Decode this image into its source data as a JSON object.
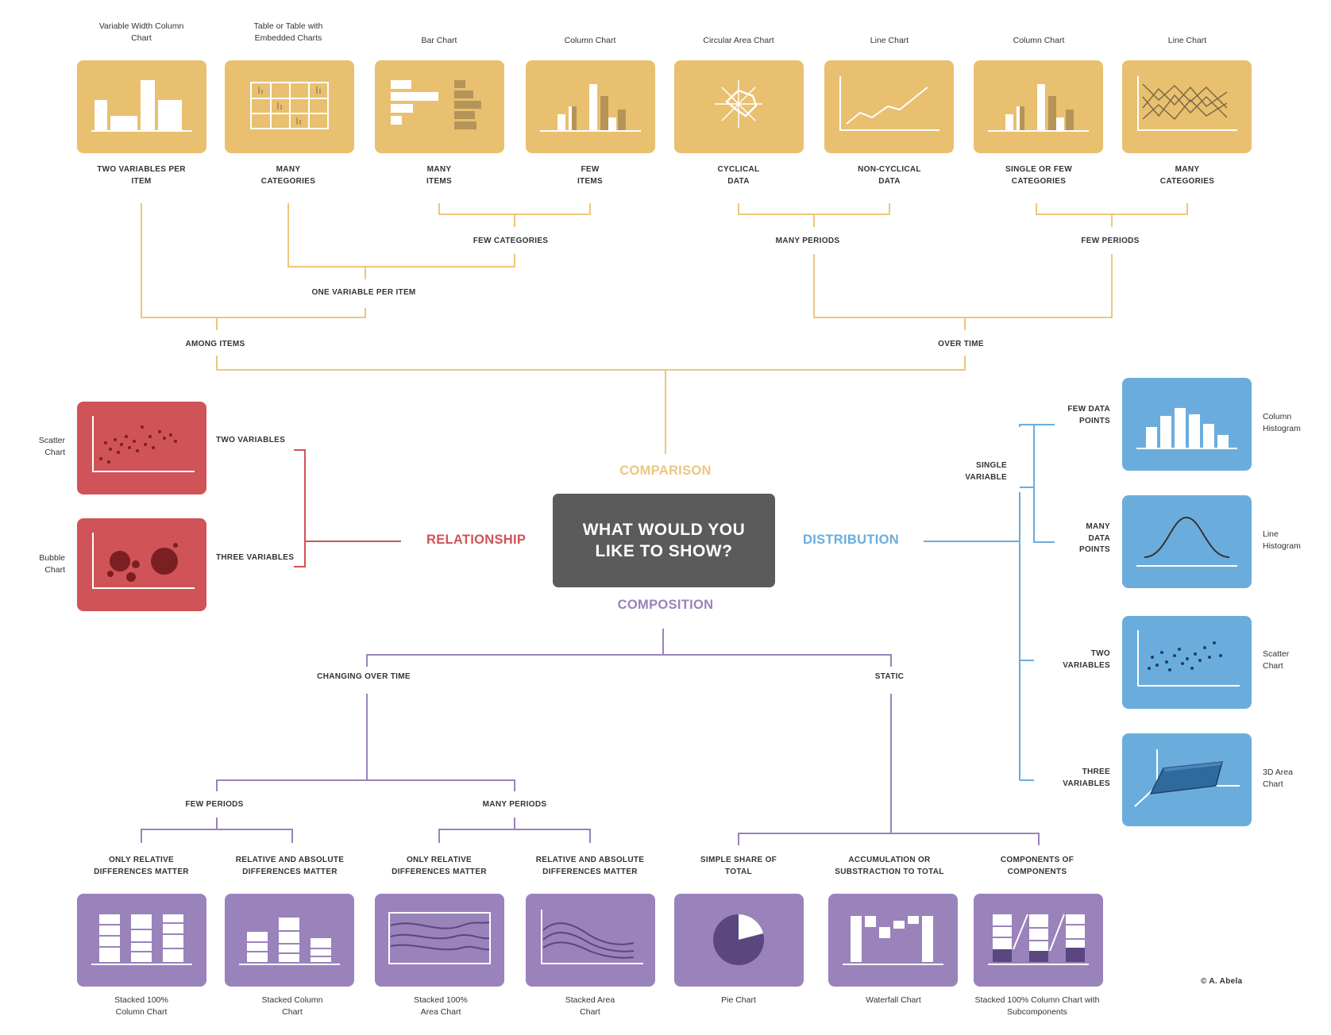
{
  "center_question": "WHAT WOULD YOU LIKE TO SHOW?",
  "categories": {
    "comparison": "COMPARISON",
    "relationship": "RELATIONSHIP",
    "distribution": "DISTRIBUTION",
    "composition": "COMPOSITION"
  },
  "colors": {
    "comparison": "#e8c06f",
    "relationship": "#d05357",
    "distribution": "#6aaddd",
    "composition": "#9a82bb",
    "center": "#5b5b5b"
  },
  "comparison": {
    "charts": [
      {
        "title": "Variable Width Column Chart",
        "criterion": "TWO VARIABLES PER ITEM",
        "icon": "variable-width-column-icon"
      },
      {
        "title": "Table or Table with Embedded Charts",
        "criterion": "MANY CATEGORIES",
        "icon": "table-icon"
      },
      {
        "title": "Bar Chart",
        "criterion": "MANY ITEMS",
        "icon": "bar-chart-icon"
      },
      {
        "title": "Column Chart",
        "criterion": "FEW ITEMS",
        "icon": "column-chart-icon"
      },
      {
        "title": "Circular Area Chart",
        "criterion": "CYCLICAL DATA",
        "icon": "circular-area-icon"
      },
      {
        "title": "Line Chart",
        "criterion": "NON-CYCLICAL DATA",
        "icon": "line-chart-icon"
      },
      {
        "title": "Column Chart",
        "criterion": "SINGLE OR FEW CATEGORIES",
        "icon": "column-chart-icon"
      },
      {
        "title": "Line Chart",
        "criterion": "MANY CATEGORIES",
        "icon": "multi-line-chart-icon"
      }
    ],
    "branches": {
      "few_categories": "FEW CATEGORIES",
      "many_periods": "MANY PERIODS",
      "few_periods": "FEW PERIODS",
      "one_variable_per_item": "ONE VARIABLE PER ITEM",
      "among_items": "AMONG ITEMS",
      "over_time": "OVER TIME"
    }
  },
  "relationship": {
    "charts": [
      {
        "title": "Scatter Chart",
        "criterion": "TWO VARIABLES",
        "icon": "scatter-icon"
      },
      {
        "title": "Bubble Chart",
        "criterion": "THREE VARIABLES",
        "icon": "bubble-icon"
      }
    ]
  },
  "distribution": {
    "single_variable": "SINGLE VARIABLE",
    "charts": [
      {
        "title": "Column Histogram",
        "criterion": "FEW DATA POINTS",
        "icon": "column-histogram-icon"
      },
      {
        "title": "Line Histogram",
        "criterion": "MANY DATA POINTS",
        "icon": "line-histogram-icon"
      },
      {
        "title": "Scatter Chart",
        "criterion": "TWO VARIABLES",
        "icon": "scatter-icon"
      },
      {
        "title": "3D Area Chart",
        "criterion": "THREE VARIABLES",
        "icon": "3d-area-icon"
      }
    ]
  },
  "composition": {
    "branches": {
      "changing_over_time": "CHANGING OVER TIME",
      "static": "STATIC",
      "few_periods": "FEW PERIODS",
      "many_periods": "MANY PERIODS"
    },
    "charts": [
      {
        "title": "Stacked 100% Column Chart",
        "criterion": "ONLY RELATIVE DIFFERENCES MATTER",
        "icon": "stacked-100-column-icon"
      },
      {
        "title": "Stacked Column Chart",
        "criterion": "RELATIVE AND ABSOLUTE DIFFERENCES MATTER",
        "icon": "stacked-column-icon"
      },
      {
        "title": "Stacked 100% Area Chart",
        "criterion": "ONLY RELATIVE DIFFERENCES MATTER",
        "icon": "stacked-100-area-icon"
      },
      {
        "title": "Stacked Area Chart",
        "criterion": "RELATIVE AND ABSOLUTE DIFFERENCES MATTER",
        "icon": "stacked-area-icon"
      },
      {
        "title": "Pie Chart",
        "criterion": "SIMPLE SHARE OF TOTAL",
        "icon": "pie-chart-icon"
      },
      {
        "title": "Waterfall Chart",
        "criterion": "ACCUMULATION OR SUBSTRACTION TO TOTAL",
        "icon": "waterfall-icon"
      },
      {
        "title": "Stacked 100% Column Chart with Subcomponents",
        "criterion": "COMPONENTS OF COMPONENTS",
        "icon": "stacked-subcomponents-icon"
      }
    ]
  },
  "credit": "© A. Abela"
}
